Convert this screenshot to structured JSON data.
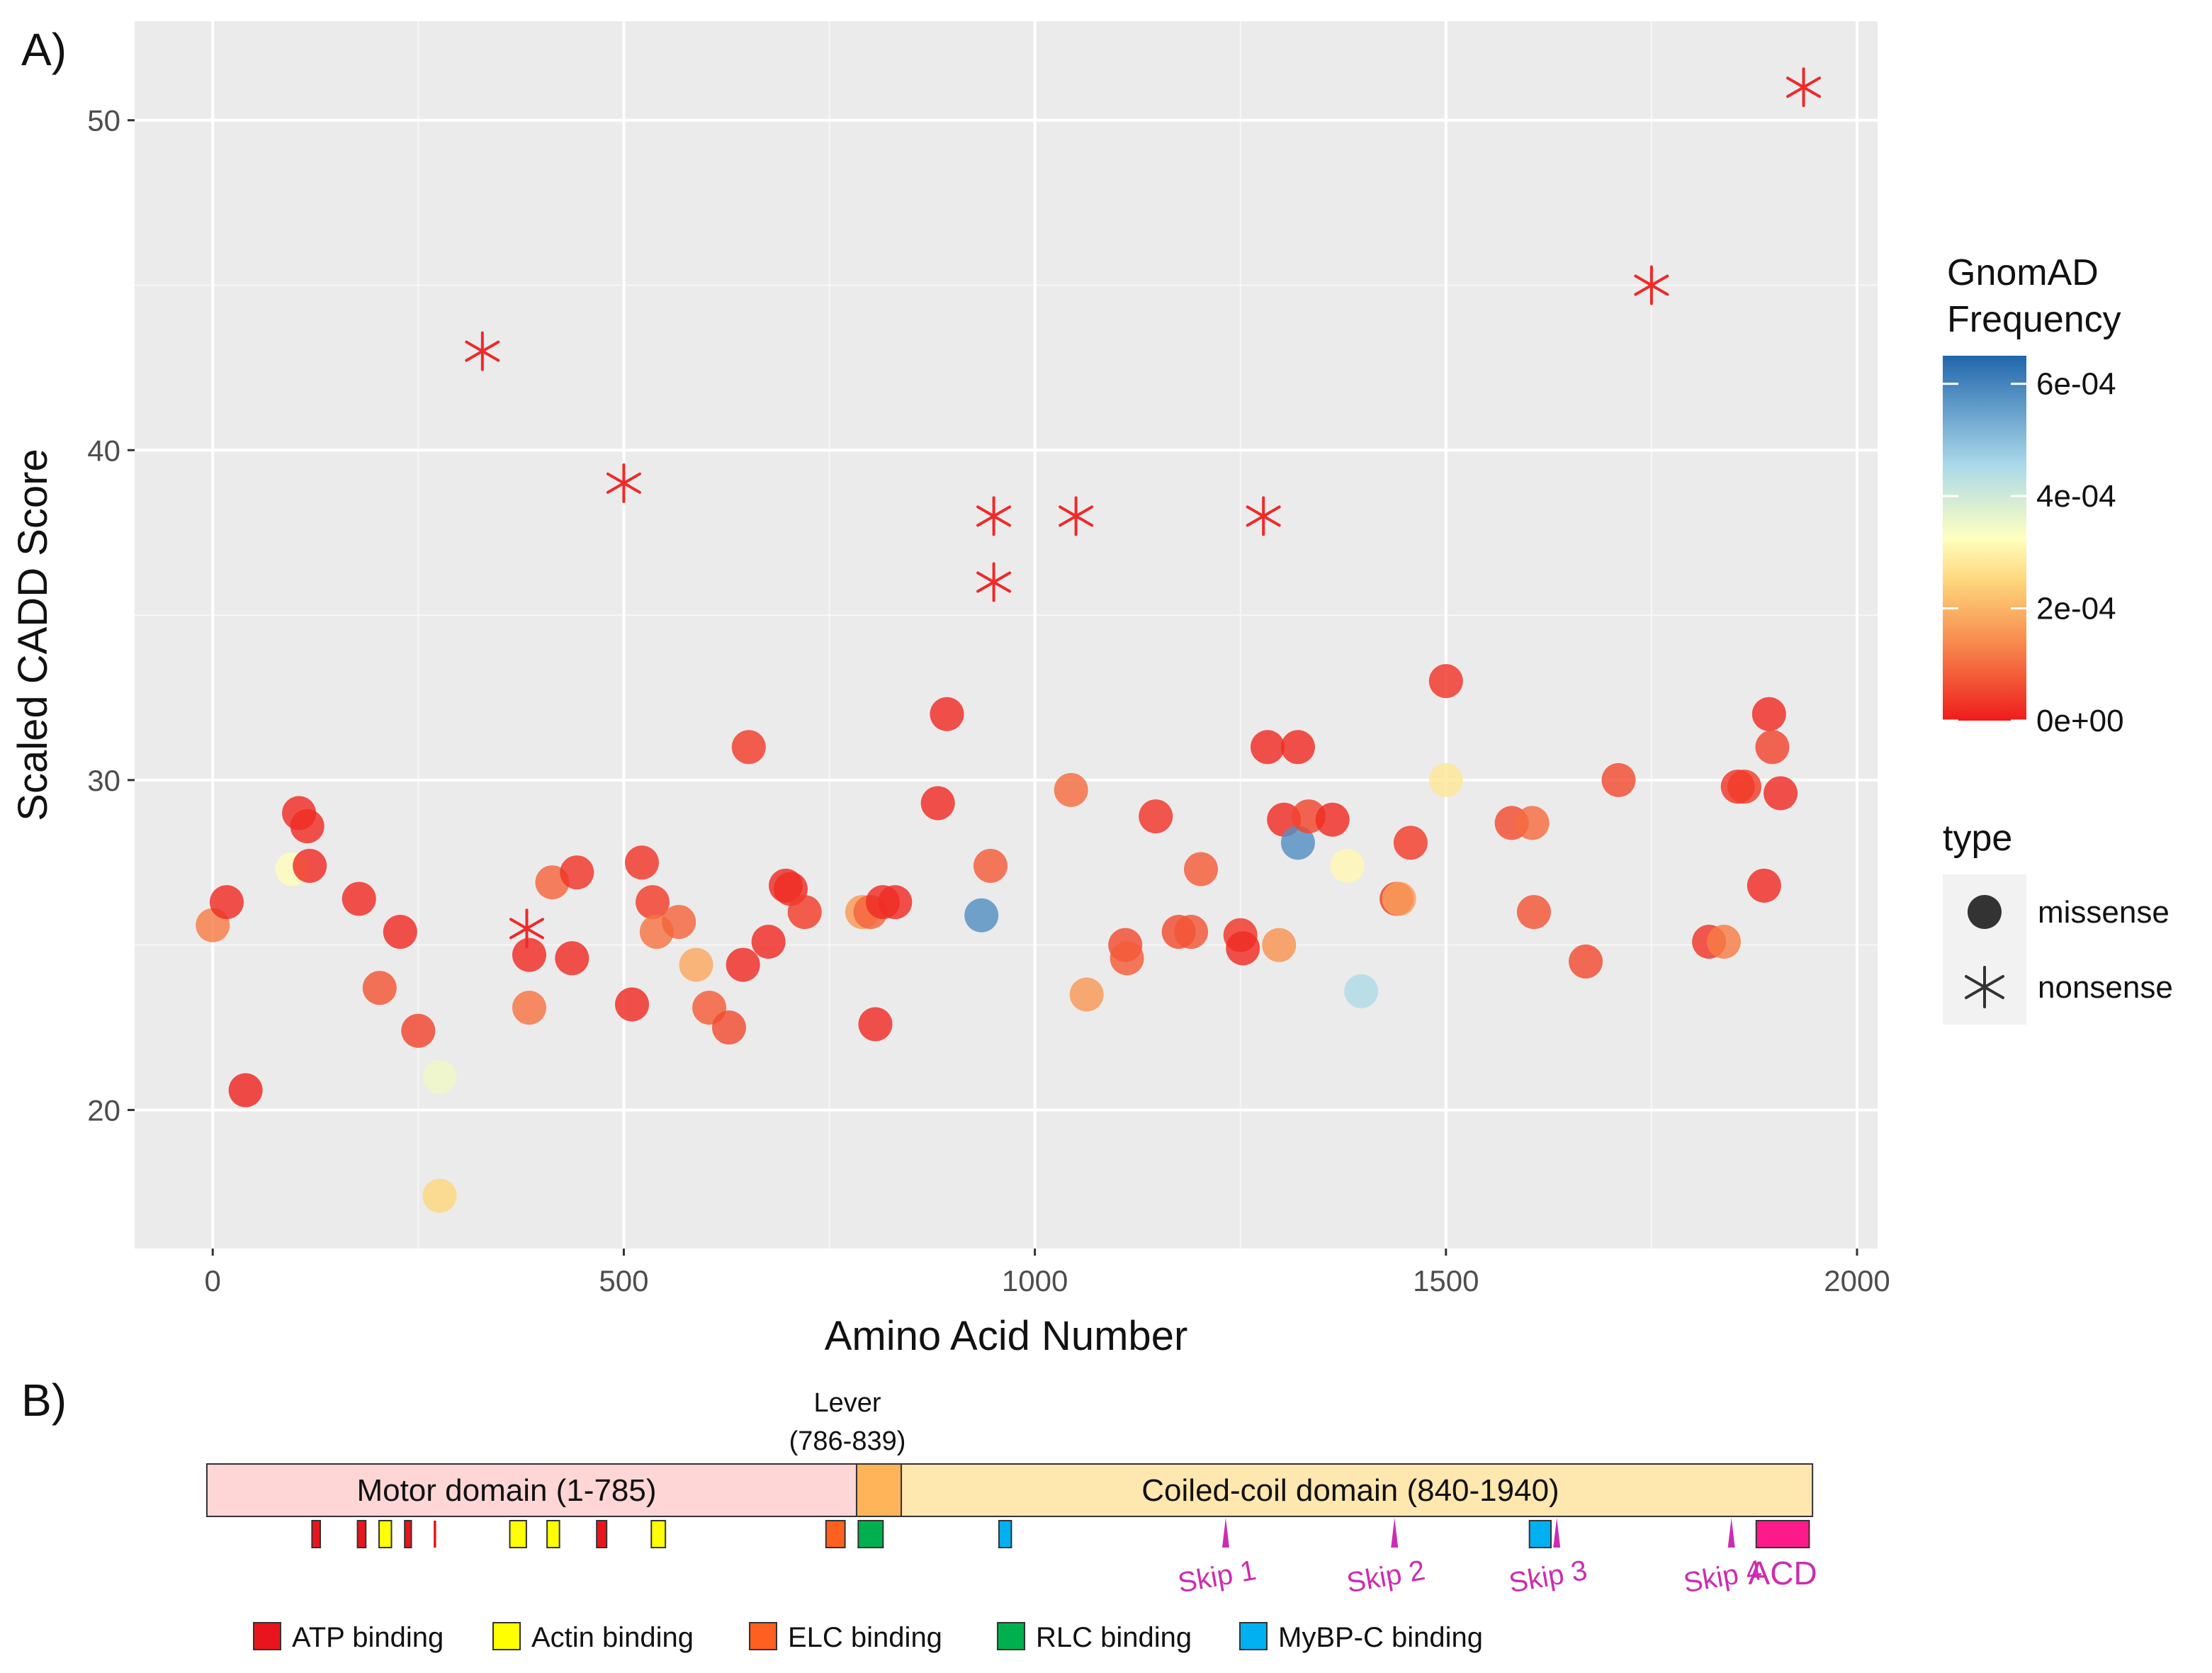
{
  "panels": {
    "a_label": "A)",
    "b_label": "B)"
  },
  "chart_data": {
    "type": "scatter",
    "xlabel": "Amino Acid Number",
    "ylabel": "Scaled CADD Score",
    "xlim": [
      -95,
      2025
    ],
    "ylim": [
      15.8,
      53.0
    ],
    "xticks": [
      0,
      500,
      1000,
      1500,
      2000
    ],
    "yticks": [
      20,
      30,
      40,
      50
    ],
    "grid": true,
    "color_legend": {
      "title_line1": "GnomAD",
      "title_line2": "Frequency",
      "ticks": [
        {
          "value": 0.0006,
          "label": "6e-04"
        },
        {
          "value": 0.0004,
          "label": "4e-04"
        },
        {
          "value": 0.0002,
          "label": "2e-04"
        },
        {
          "value": 0,
          "label": "0e+00"
        }
      ],
      "min": 0,
      "max": 0.00065,
      "stops": [
        {
          "f": 0.0,
          "color": "#ee1c1c"
        },
        {
          "f": 0.2,
          "color": "#f7844a"
        },
        {
          "f": 0.38,
          "color": "#fdd57a"
        },
        {
          "f": 0.5,
          "color": "#ffffbf"
        },
        {
          "f": 0.7,
          "color": "#abd9e9"
        },
        {
          "f": 1.0,
          "color": "#2166ac"
        }
      ]
    },
    "shape_legend": {
      "title": "type",
      "items": [
        {
          "shape": "circle",
          "label": "missense"
        },
        {
          "shape": "star",
          "label": "nonsense"
        }
      ]
    },
    "missense": [
      {
        "x": 0,
        "y": 25.6,
        "f": 0.00012
      },
      {
        "x": 17,
        "y": 26.3,
        "f": 2e-05
      },
      {
        "x": 40,
        "y": 20.6,
        "f": 1e-05
      },
      {
        "x": 97,
        "y": 27.3,
        "f": 0.00032
      },
      {
        "x": 105,
        "y": 29.0,
        "f": 2e-05
      },
      {
        "x": 115,
        "y": 28.6,
        "f": 2e-05
      },
      {
        "x": 118,
        "y": 27.4,
        "f": 2e-05
      },
      {
        "x": 178,
        "y": 26.4,
        "f": 2e-05
      },
      {
        "x": 203,
        "y": 23.7,
        "f": 7e-05
      },
      {
        "x": 228,
        "y": 25.4,
        "f": 2e-05
      },
      {
        "x": 250,
        "y": 22.4,
        "f": 5e-05
      },
      {
        "x": 276,
        "y": 21.0,
        "f": 0.00035
      },
      {
        "x": 276,
        "y": 17.4,
        "f": 0.00025
      },
      {
        "x": 385,
        "y": 24.7,
        "f": 2e-05
      },
      {
        "x": 385,
        "y": 23.1,
        "f": 0.00011
      },
      {
        "x": 413,
        "y": 26.9,
        "f": 9e-05
      },
      {
        "x": 437,
        "y": 24.6,
        "f": 2e-05
      },
      {
        "x": 443,
        "y": 27.2,
        "f": 3e-05
      },
      {
        "x": 510,
        "y": 23.2,
        "f": 2e-05
      },
      {
        "x": 522,
        "y": 27.5,
        "f": 3e-05
      },
      {
        "x": 535,
        "y": 26.3,
        "f": 4e-05
      },
      {
        "x": 540,
        "y": 25.4,
        "f": 0.00011
      },
      {
        "x": 567,
        "y": 25.7,
        "f": 9e-05
      },
      {
        "x": 588,
        "y": 24.4,
        "f": 0.00018
      },
      {
        "x": 604,
        "y": 23.1,
        "f": 8e-05
      },
      {
        "x": 628,
        "y": 22.5,
        "f": 6e-05
      },
      {
        "x": 645,
        "y": 24.4,
        "f": 2e-05
      },
      {
        "x": 652,
        "y": 31.0,
        "f": 4e-05
      },
      {
        "x": 676,
        "y": 25.1,
        "f": 2e-05
      },
      {
        "x": 697,
        "y": 26.8,
        "f": 2e-05
      },
      {
        "x": 703,
        "y": 26.7,
        "f": 2e-05
      },
      {
        "x": 720,
        "y": 26.0,
        "f": 4e-05
      },
      {
        "x": 790,
        "y": 26.0,
        "f": 0.00016
      },
      {
        "x": 800,
        "y": 26.0,
        "f": 9e-05
      },
      {
        "x": 806,
        "y": 22.6,
        "f": 2e-05
      },
      {
        "x": 815,
        "y": 26.3,
        "f": 2e-05
      },
      {
        "x": 830,
        "y": 26.3,
        "f": 2e-05
      },
      {
        "x": 882,
        "y": 29.3,
        "f": 2e-05
      },
      {
        "x": 893,
        "y": 32.0,
        "f": 2e-05
      },
      {
        "x": 935,
        "y": 25.9,
        "f": 0.00058
      },
      {
        "x": 946,
        "y": 27.4,
        "f": 8e-05
      },
      {
        "x": 1044,
        "y": 29.7,
        "f": 0.0001
      },
      {
        "x": 1063,
        "y": 23.5,
        "f": 0.00016
      },
      {
        "x": 1110,
        "y": 25.0,
        "f": 6e-05
      },
      {
        "x": 1112,
        "y": 24.6,
        "f": 8e-05
      },
      {
        "x": 1147,
        "y": 28.9,
        "f": 3e-05
      },
      {
        "x": 1175,
        "y": 25.4,
        "f": 6e-05
      },
      {
        "x": 1190,
        "y": 25.4,
        "f": 7e-05
      },
      {
        "x": 1202,
        "y": 27.3,
        "f": 8e-05
      },
      {
        "x": 1250,
        "y": 25.3,
        "f": 3e-05
      },
      {
        "x": 1253,
        "y": 24.9,
        "f": 2e-05
      },
      {
        "x": 1297,
        "y": 25.0,
        "f": 0.00015
      },
      {
        "x": 1283,
        "y": 31.0,
        "f": 2e-05
      },
      {
        "x": 1303,
        "y": 28.8,
        "f": 2e-05
      },
      {
        "x": 1320,
        "y": 31.0,
        "f": 2e-05
      },
      {
        "x": 1320,
        "y": 28.1,
        "f": 0.00058
      },
      {
        "x": 1333,
        "y": 28.9,
        "f": 5e-05
      },
      {
        "x": 1362,
        "y": 28.8,
        "f": 2e-05
      },
      {
        "x": 1380,
        "y": 27.4,
        "f": 0.00031
      },
      {
        "x": 1397,
        "y": 23.6,
        "f": 0.00045
      },
      {
        "x": 1440,
        "y": 26.4,
        "f": 4e-05
      },
      {
        "x": 1443,
        "y": 26.4,
        "f": 0.00017
      },
      {
        "x": 1457,
        "y": 28.1,
        "f": 4e-05
      },
      {
        "x": 1500,
        "y": 33.0,
        "f": 3e-05
      },
      {
        "x": 1500,
        "y": 30.0,
        "f": 0.00028
      },
      {
        "x": 1580,
        "y": 28.7,
        "f": 6e-05
      },
      {
        "x": 1605,
        "y": 28.7,
        "f": 0.0001
      },
      {
        "x": 1607,
        "y": 26.0,
        "f": 7e-05
      },
      {
        "x": 1670,
        "y": 24.5,
        "f": 6e-05
      },
      {
        "x": 1710,
        "y": 30.0,
        "f": 6e-05
      },
      {
        "x": 1820,
        "y": 25.1,
        "f": 3e-05
      },
      {
        "x": 1838,
        "y": 25.1,
        "f": 0.00012
      },
      {
        "x": 1855,
        "y": 29.8,
        "f": 3e-05
      },
      {
        "x": 1863,
        "y": 29.8,
        "f": 4e-05
      },
      {
        "x": 1887,
        "y": 26.8,
        "f": 2e-05
      },
      {
        "x": 1893,
        "y": 32.0,
        "f": 2e-05
      },
      {
        "x": 1897,
        "y": 31.0,
        "f": 5e-05
      },
      {
        "x": 1907,
        "y": 29.6,
        "f": 2e-05
      }
    ],
    "nonsense": [
      {
        "x": 328,
        "y": 43.0
      },
      {
        "x": 500,
        "y": 39.0
      },
      {
        "x": 382,
        "y": 25.5
      },
      {
        "x": 950,
        "y": 38.0
      },
      {
        "x": 950,
        "y": 36.0
      },
      {
        "x": 1050,
        "y": 38.0
      },
      {
        "x": 1278,
        "y": 38.0
      },
      {
        "x": 1750,
        "y": 45.0
      },
      {
        "x": 1935,
        "y": 51.0
      }
    ],
    "nonsense_color": "#ee2a2a"
  },
  "domain_map": {
    "protein_length": 1940,
    "domains": [
      {
        "label": "Motor domain (1-785)",
        "start": 1,
        "end": 785,
        "color": "#ffd6d6"
      },
      {
        "label": "",
        "start": 786,
        "end": 839,
        "color": "#ffb45a"
      },
      {
        "label": "Coiled-coil domain (840-1940)",
        "start": 840,
        "end": 1940,
        "color": "#ffe7b0"
      }
    ],
    "lever_line1": "Lever",
    "lever_line2": "(786-839)",
    "features": [
      {
        "start": 128,
        "end": 138,
        "type": "ATP binding"
      },
      {
        "start": 183,
        "end": 193,
        "type": "ATP binding"
      },
      {
        "start": 209,
        "end": 224,
        "type": "Actin binding"
      },
      {
        "start": 240,
        "end": 248,
        "type": "ATP binding"
      },
      {
        "start": 275,
        "end": 278,
        "type": "ATP binding"
      },
      {
        "start": 367,
        "end": 387,
        "type": "Actin binding"
      },
      {
        "start": 412,
        "end": 427,
        "type": "Actin binding"
      },
      {
        "start": 472,
        "end": 484,
        "type": "ATP binding"
      },
      {
        "start": 538,
        "end": 555,
        "type": "Actin binding"
      },
      {
        "start": 749,
        "end": 772,
        "type": "ELC binding"
      },
      {
        "start": 788,
        "end": 818,
        "type": "RLC binding"
      },
      {
        "start": 958,
        "end": 973,
        "type": "MyBP-C binding"
      },
      {
        "start": 1599,
        "end": 1625,
        "type": "MyBP-C binding"
      }
    ],
    "feature_colors": {
      "ATP binding": "#e8161c",
      "Actin binding": "#ffff00",
      "ELC binding": "#ff5f1f",
      "RLC binding": "#00b04f",
      "MyBP-C binding": "#00b0f0"
    },
    "skips": [
      {
        "label": "Skip 1",
        "pos": 1232
      },
      {
        "label": "Skip 2",
        "pos": 1436
      },
      {
        "label": "Skip 3",
        "pos": 1632
      },
      {
        "label": "Skip 4",
        "pos": 1843
      }
    ],
    "acd": {
      "label": "ACD",
      "start": 1873,
      "end": 1937,
      "color": "#ff1a8c"
    },
    "skip_color": "#cc2db0",
    "legend": [
      {
        "label": "ATP binding",
        "color": "#e8161c"
      },
      {
        "label": "Actin binding",
        "color": "#ffff00"
      },
      {
        "label": "ELC binding",
        "color": "#ff5f1f"
      },
      {
        "label": "RLC binding",
        "color": "#00b04f"
      },
      {
        "label": "MyBP-C binding",
        "color": "#00b0f0"
      }
    ]
  }
}
